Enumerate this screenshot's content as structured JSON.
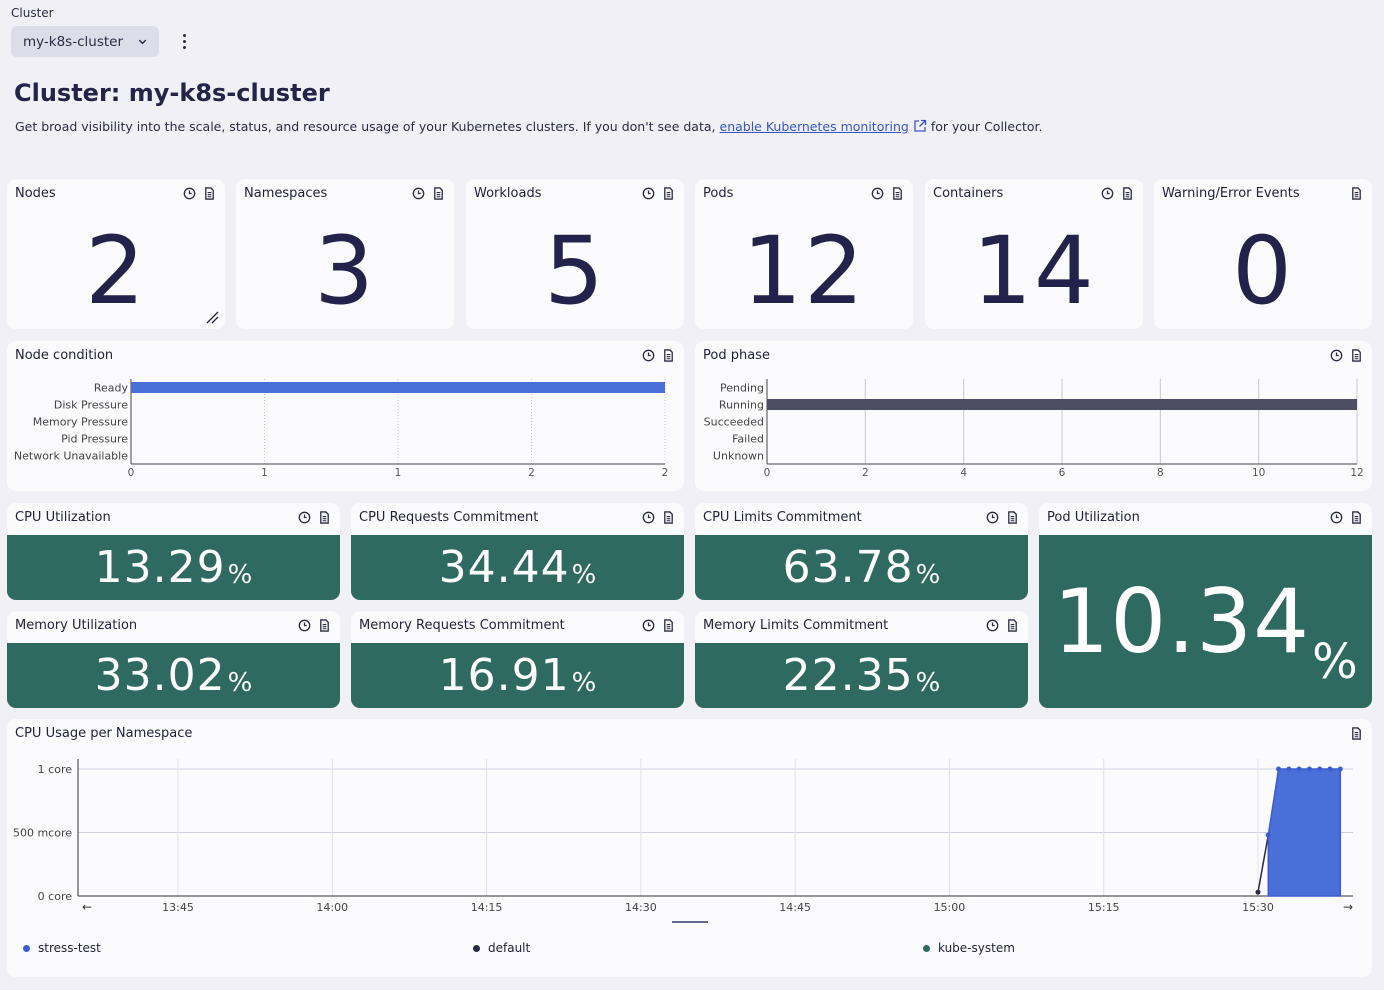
{
  "header": {
    "cluster_label": "Cluster",
    "cluster_value": "my-k8s-cluster",
    "title": "Cluster: my-k8s-cluster",
    "desc_before": "Get broad visibility into the scale, status, and resource usage of your Kubernetes clusters. If you don't see data,",
    "desc_link": "enable Kubernetes monitoring",
    "desc_after": "for your Collector."
  },
  "stats": [
    {
      "title": "Nodes",
      "value": "2"
    },
    {
      "title": "Namespaces",
      "value": "3"
    },
    {
      "title": "Workloads",
      "value": "5"
    },
    {
      "title": "Pods",
      "value": "12"
    },
    {
      "title": "Containers",
      "value": "14"
    },
    {
      "title": "Warning/Error Events",
      "value": "0"
    }
  ],
  "percent_tiles": {
    "cpu_util": {
      "title": "CPU Utilization",
      "value": "13.29",
      "unit": "%"
    },
    "cpu_req": {
      "title": "CPU Requests Commitment",
      "value": "34.44",
      "unit": "%"
    },
    "cpu_lim": {
      "title": "CPU Limits Commitment",
      "value": "63.78",
      "unit": "%"
    },
    "pod_util": {
      "title": "Pod Utilization",
      "value": "10.34",
      "unit": "%"
    },
    "mem_util": {
      "title": "Memory Utilization",
      "value": "33.02",
      "unit": "%"
    },
    "mem_req": {
      "title": "Memory Requests Commitment",
      "value": "16.91",
      "unit": "%"
    },
    "mem_lim": {
      "title": "Memory Limits Commitment",
      "value": "22.35",
      "unit": "%"
    }
  },
  "colors": {
    "accent_blue": "#4a6fd8",
    "running_bar": "#4d4e64",
    "tile_green": "#2e6a60",
    "stress_test": "#3a5ed0",
    "default": "#2a2a40",
    "kube_system": "#2e6a60"
  },
  "chart_data": [
    {
      "type": "bar",
      "orientation": "horizontal",
      "title": "Node condition",
      "categories": [
        "Ready",
        "Disk Pressure",
        "Memory Pressure",
        "Pid Pressure",
        "Network Unavailable"
      ],
      "values": [
        2,
        0,
        0,
        0,
        0
      ],
      "x_ticks": [
        "0",
        "1",
        "1",
        "2",
        "2"
      ],
      "xlim": [
        0,
        2
      ]
    },
    {
      "type": "bar",
      "orientation": "horizontal",
      "title": "Pod phase",
      "categories": [
        "Pending",
        "Running",
        "Succeeded",
        "Failed",
        "Unknown"
      ],
      "values": [
        0,
        12,
        0,
        0,
        0
      ],
      "x_ticks": [
        "0",
        "2",
        "4",
        "6",
        "8",
        "10",
        "12"
      ],
      "xlim": [
        0,
        12
      ]
    },
    {
      "type": "area",
      "title": "CPU Usage per Namespace",
      "y_ticks": [
        "1 core",
        "500 mcore",
        "0 core"
      ],
      "x_ticks": [
        "13:45",
        "14:00",
        "14:15",
        "14:30",
        "14:45",
        "15:00",
        "15:15",
        "15:30"
      ],
      "ylim": [
        0,
        1
      ],
      "grid": true,
      "legend_position": "bottom",
      "series": [
        {
          "name": "stress-test",
          "x": [
            "15:31",
            "15:32",
            "15:33",
            "15:34",
            "15:35",
            "15:36",
            "15:37",
            "15:38"
          ],
          "values": [
            0.48,
            1.0,
            1.0,
            1.0,
            1.0,
            1.0,
            1.0,
            1.0
          ]
        },
        {
          "name": "default",
          "x": [
            "15:30",
            "15:31"
          ],
          "values": [
            0.03,
            0.48
          ]
        },
        {
          "name": "kube-system",
          "x": [],
          "values": []
        }
      ]
    }
  ]
}
